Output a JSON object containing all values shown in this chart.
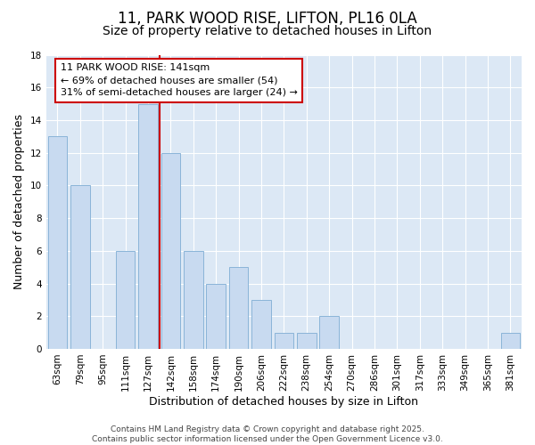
{
  "title1": "11, PARK WOOD RISE, LIFTON, PL16 0LA",
  "title2": "Size of property relative to detached houses in Lifton",
  "xlabel": "Distribution of detached houses by size in Lifton",
  "ylabel": "Number of detached properties",
  "bins": [
    "63sqm",
    "79sqm",
    "95sqm",
    "111sqm",
    "127sqm",
    "142sqm",
    "158sqm",
    "174sqm",
    "190sqm",
    "206sqm",
    "222sqm",
    "238sqm",
    "254sqm",
    "270sqm",
    "286sqm",
    "301sqm",
    "317sqm",
    "333sqm",
    "349sqm",
    "365sqm",
    "381sqm"
  ],
  "values": [
    13,
    10,
    0,
    6,
    15,
    12,
    6,
    4,
    5,
    3,
    1,
    1,
    2,
    0,
    0,
    0,
    0,
    0,
    0,
    0,
    1
  ],
  "bar_color": "#c8daf0",
  "bar_edgecolor": "#8ab4d8",
  "vline_index": 5,
  "vline_color": "#cc0000",
  "annotation_text": "11 PARK WOOD RISE: 141sqm\n← 69% of detached houses are smaller (54)\n31% of semi-detached houses are larger (24) →",
  "annotation_box_edgecolor": "#cc0000",
  "annotation_box_facecolor": "white",
  "ylim": [
    0,
    18
  ],
  "yticks": [
    0,
    2,
    4,
    6,
    8,
    10,
    12,
    14,
    16,
    18
  ],
  "footnote": "Contains HM Land Registry data © Crown copyright and database right 2025.\nContains public sector information licensed under the Open Government Licence v3.0.",
  "background_color": "#ffffff",
  "plot_background": "#dce8f5",
  "title_fontsize": 12,
  "subtitle_fontsize": 10,
  "axis_label_fontsize": 9,
  "tick_fontsize": 7.5,
  "annotation_fontsize": 8,
  "footnote_fontsize": 6.5
}
